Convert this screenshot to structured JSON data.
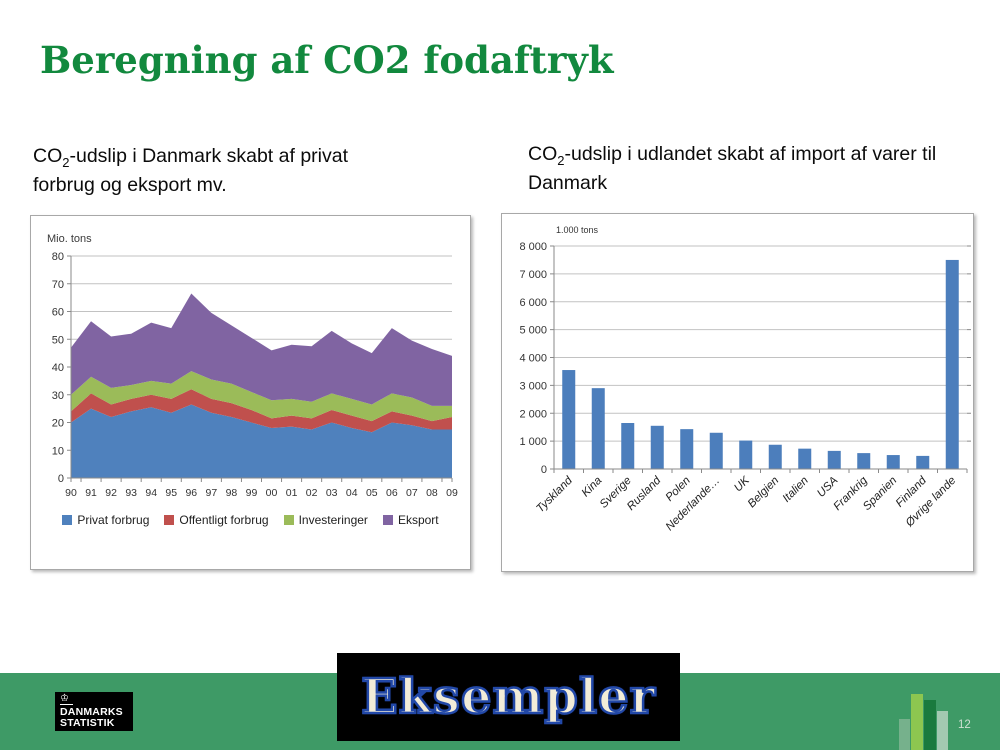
{
  "slide": {
    "title": "Beregning af CO2 fodaftryk",
    "page_number": "12"
  },
  "headings": {
    "left": {
      "prefix": "CO",
      "subscript": "2",
      "rest": "-udslip i Danmark skabt af privat forbrug og eksport mv."
    },
    "right": {
      "prefix": "CO",
      "subscript": "2",
      "rest": "-udslip i udlandet skabt af import af varer til Danmark"
    }
  },
  "chart_data": [
    {
      "id": "dk-emissions-stacked-area",
      "type": "area",
      "stacked": true,
      "title": "CO2-udslip i Danmark skabt af privat forbrug og eksport mv.",
      "unit_label": "Mio. tons",
      "categories": [
        "90",
        "91",
        "92",
        "93",
        "94",
        "95",
        "96",
        "97",
        "98",
        "99",
        "00",
        "01",
        "02",
        "03",
        "04",
        "05",
        "06",
        "07",
        "08",
        "09"
      ],
      "series": [
        {
          "name": "Privat forbrug",
          "color": "#4F81BD",
          "values": [
            20,
            25,
            22,
            24,
            25.5,
            23.5,
            26.5,
            23.5,
            22,
            20,
            18,
            18.5,
            17.5,
            20,
            18,
            16.5,
            20,
            19,
            17.5,
            17.5
          ]
        },
        {
          "name": "Offentligt forbrug",
          "color": "#C0504D",
          "values": [
            4,
            5.5,
            4.5,
            4.5,
            4.5,
            5,
            5.5,
            5,
            5,
            4.5,
            3.5,
            4,
            4,
            4.5,
            4.5,
            4,
            4,
            3.5,
            3,
            4.5
          ]
        },
        {
          "name": "Investeringer",
          "color": "#9BBB59",
          "values": [
            6,
            6,
            6,
            5,
            5,
            5.5,
            6.5,
            7,
            7,
            6.5,
            6.5,
            6,
            6,
            6,
            6,
            6,
            6.5,
            6.5,
            5.5,
            4
          ]
        },
        {
          "name": "Eksport",
          "color": "#8064A2",
          "values": [
            17,
            20,
            18.5,
            18.5,
            21,
            20,
            28,
            24,
            21,
            19.5,
            18,
            19.5,
            20,
            22.5,
            20,
            18.5,
            23.5,
            20.5,
            20.5,
            18
          ]
        }
      ],
      "ylim": [
        0,
        80
      ],
      "ytick_step": 10,
      "grid": true,
      "legend_position": "bottom"
    },
    {
      "id": "import-emissions-bar",
      "type": "bar",
      "title": "CO2-udslip i udlandet skabt af import af varer til Danmark",
      "unit_label": "1.000 tons",
      "categories": [
        "Tyskland",
        "Kina",
        "Sverige",
        "Rusland",
        "Polen",
        "Nederlande…",
        "UK",
        "Belgien",
        "Italien",
        "USA",
        "Frankrig",
        "Spanien",
        "Finland",
        "Øvrige lande"
      ],
      "values": [
        3550,
        2900,
        1650,
        1550,
        1430,
        1300,
        1020,
        870,
        730,
        650,
        570,
        500,
        470,
        7500
      ],
      "bar_color": "#4C7EBC",
      "ylim": [
        0,
        8000
      ],
      "ytick_step": 1000,
      "ytick_labels": [
        "0",
        "1 000",
        "2 000",
        "3 000",
        "4 000",
        "5 000",
        "6 000",
        "7 000",
        "8 000"
      ],
      "grid": true,
      "legend_position": "none"
    }
  ],
  "footer": {
    "banner_label": "Eksempler",
    "logo": {
      "crown_icon": "♔",
      "line1": "DANMARKS",
      "line2": "STATISTIK"
    },
    "icon_bars": [
      {
        "width": 11,
        "height": 31,
        "color": "#76B18C"
      },
      {
        "width": 12,
        "height": 56,
        "color": "#8DC650"
      },
      {
        "width": 12,
        "height": 50,
        "color": "#1A7A3E"
      },
      {
        "width": 11,
        "height": 39,
        "color": "#A3C9B1"
      }
    ]
  },
  "theme": {
    "title_green": "#12893E",
    "footer_green": "#3E9A66",
    "banner_bg": "#000000",
    "banner_fill": "#F2ECD8",
    "banner_outline": "#2248A8",
    "panel_border": "#A8A8A8",
    "gridline": "#C2C2C2",
    "axis": "#8A8A8A"
  }
}
